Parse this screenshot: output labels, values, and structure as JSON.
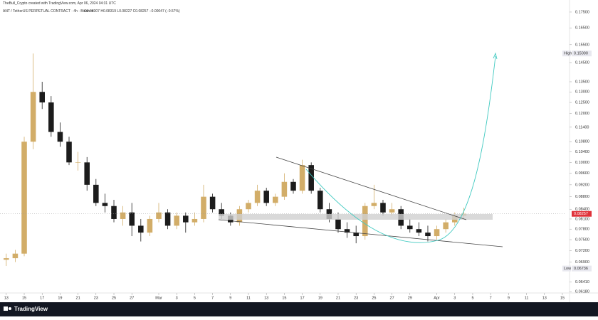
{
  "header": {
    "credit": "TheBull_Crypto created with TradingView.com, Apr 06, 2024 04:31 UTC",
    "symbol": "ANT / TetherUS PERPETUAL CONTRACT · 4h · Binance",
    "ohlc": "O0.08307 H0.08319 L0.08227 C0.08257 −0.00047 (−0.57%)"
  },
  "footer": {
    "brand": "TradingView"
  },
  "chart_data": {
    "type": "candlestick",
    "log_scale": true,
    "grid": false,
    "up_color": "#d2ad68",
    "down_color": "#1c1c1c",
    "x": [
      0,
      1,
      2,
      3,
      4,
      5,
      6,
      7,
      8,
      9,
      10,
      11,
      12,
      13,
      14,
      15,
      16,
      17,
      18,
      19,
      20,
      21,
      22,
      23,
      24,
      25,
      26,
      27,
      28,
      29,
      30,
      31,
      32,
      33,
      34,
      35,
      36,
      37,
      38,
      39,
      40,
      41,
      42,
      43,
      44,
      45,
      46,
      47,
      48,
      49,
      50,
      51
    ],
    "open": [
      0.0696,
      0.07,
      0.0712,
      0.108,
      0.13,
      0.125,
      0.112,
      0.108,
      0.1,
      0.1,
      0.092,
      0.086,
      0.085,
      0.081,
      0.083,
      0.079,
      0.077,
      0.081,
      0.083,
      0.079,
      0.082,
      0.08,
      0.081,
      0.088,
      0.084,
      0.082,
      0.08,
      0.084,
      0.086,
      0.09,
      0.086,
      0.088,
      0.093,
      0.09,
      0.099,
      0.09,
      0.084,
      0.081,
      0.078,
      0.077,
      0.076,
      0.085,
      0.086,
      0.083,
      0.084,
      0.079,
      0.078,
      0.077,
      0.076,
      0.078,
      0.08,
      0.082
    ],
    "high": [
      0.0712,
      0.0722,
      0.11,
      0.15,
      0.135,
      0.128,
      0.116,
      0.11,
      0.104,
      0.102,
      0.094,
      0.089,
      0.087,
      0.085,
      0.086,
      0.081,
      0.082,
      0.086,
      0.084,
      0.083,
      0.083,
      0.083,
      0.092,
      0.089,
      0.086,
      0.083,
      0.085,
      0.087,
      0.092,
      0.091,
      0.089,
      0.096,
      0.094,
      0.101,
      0.1,
      0.091,
      0.086,
      0.083,
      0.08,
      0.079,
      0.086,
      0.092,
      0.087,
      0.086,
      0.085,
      0.081,
      0.08,
      0.079,
      0.079,
      0.081,
      0.083,
      0.0845
    ],
    "low": [
      0.068,
      0.069,
      0.0705,
      0.105,
      0.122,
      0.11,
      0.106,
      0.099,
      0.097,
      0.09,
      0.085,
      0.083,
      0.08,
      0.079,
      0.076,
      0.0745,
      0.076,
      0.08,
      0.078,
      0.078,
      0.077,
      0.079,
      0.08,
      0.083,
      0.081,
      0.079,
      0.079,
      0.083,
      0.085,
      0.085,
      0.085,
      0.087,
      0.089,
      0.089,
      0.089,
      0.083,
      0.08,
      0.077,
      0.0755,
      0.074,
      0.075,
      0.084,
      0.082,
      0.082,
      0.078,
      0.077,
      0.076,
      0.0745,
      0.075,
      0.077,
      0.079,
      0.081
    ],
    "close": [
      0.07,
      0.0712,
      0.108,
      0.13,
      0.125,
      0.112,
      0.108,
      0.1,
      0.1,
      0.092,
      0.086,
      0.085,
      0.081,
      0.083,
      0.079,
      0.077,
      0.081,
      0.083,
      0.079,
      0.082,
      0.08,
      0.081,
      0.088,
      0.084,
      0.082,
      0.08,
      0.084,
      0.086,
      0.09,
      0.086,
      0.088,
      0.093,
      0.09,
      0.099,
      0.09,
      0.084,
      0.081,
      0.078,
      0.077,
      0.076,
      0.085,
      0.086,
      0.083,
      0.084,
      0.079,
      0.078,
      0.077,
      0.076,
      0.078,
      0.08,
      0.082,
      0.08257
    ],
    "xlim": [
      -0.7,
      62.4
    ],
    "ylim": [
      0.0615,
      0.1792
    ],
    "xticks": [
      {
        "value": 0,
        "label": "13"
      },
      {
        "value": 2,
        "label": "15"
      },
      {
        "value": 4,
        "label": "17"
      },
      {
        "value": 6,
        "label": "19"
      },
      {
        "value": 8,
        "label": "21"
      },
      {
        "value": 10,
        "label": "23"
      },
      {
        "value": 12,
        "label": "25"
      },
      {
        "value": 14,
        "label": "27"
      },
      {
        "value": 17,
        "label": "Mar"
      },
      {
        "value": 19,
        "label": "3"
      },
      {
        "value": 21,
        "label": "5"
      },
      {
        "value": 23,
        "label": "7"
      },
      {
        "value": 25,
        "label": "9"
      },
      {
        "value": 27,
        "label": "11"
      },
      {
        "value": 29,
        "label": "13"
      },
      {
        "value": 31,
        "label": "15"
      },
      {
        "value": 33,
        "label": "17"
      },
      {
        "value": 35,
        "label": "19"
      },
      {
        "value": 37,
        "label": "21"
      },
      {
        "value": 39,
        "label": "23"
      },
      {
        "value": 41,
        "label": "25"
      },
      {
        "value": 43,
        "label": "27"
      },
      {
        "value": 45,
        "label": "29"
      },
      {
        "value": 48,
        "label": "Apr"
      },
      {
        "value": 50,
        "label": "3"
      },
      {
        "value": 52,
        "label": "5"
      },
      {
        "value": 54,
        "label": "7"
      },
      {
        "value": 56,
        "label": "9"
      },
      {
        "value": 58,
        "label": "11"
      },
      {
        "value": 60,
        "label": "13"
      },
      {
        "value": 62,
        "label": "15"
      }
    ],
    "yticks": [
      {
        "value": 0.175,
        "label": "0.17500"
      },
      {
        "value": 0.165,
        "label": "0.16500"
      },
      {
        "value": 0.155,
        "label": "0.15500"
      },
      {
        "value": 0.145,
        "label": "0.14500"
      },
      {
        "value": 0.135,
        "label": "0.13500"
      },
      {
        "value": 0.13,
        "label": "0.13000"
      },
      {
        "value": 0.125,
        "label": "0.12500"
      },
      {
        "value": 0.12,
        "label": "0.12000"
      },
      {
        "value": 0.114,
        "label": "0.11400"
      },
      {
        "value": 0.108,
        "label": "0.10800"
      },
      {
        "value": 0.104,
        "label": "0.10400"
      },
      {
        "value": 0.1,
        "label": "0.10000"
      },
      {
        "value": 0.096,
        "label": "0.09600"
      },
      {
        "value": 0.092,
        "label": "0.09200"
      },
      {
        "value": 0.088,
        "label": "0.08800"
      },
      {
        "value": 0.084,
        "label": "0.08400"
      },
      {
        "value": 0.081,
        "label": "0.08100"
      },
      {
        "value": 0.078,
        "label": "0.07800"
      },
      {
        "value": 0.075,
        "label": "0.07500"
      },
      {
        "value": 0.072,
        "label": "0.07200"
      },
      {
        "value": 0.069,
        "label": "0.06900"
      },
      {
        "value": 0.0641,
        "label": "0.06410"
      },
      {
        "value": 0.0618,
        "label": "0.06180"
      }
    ],
    "last_price": 0.08257,
    "last_color": "#e0323a",
    "markers": [
      {
        "name": "High",
        "value": 0.15,
        "label": "0.15000"
      },
      {
        "name": "Low",
        "value": 0.06736,
        "label": "0.06736"
      }
    ]
  }
}
